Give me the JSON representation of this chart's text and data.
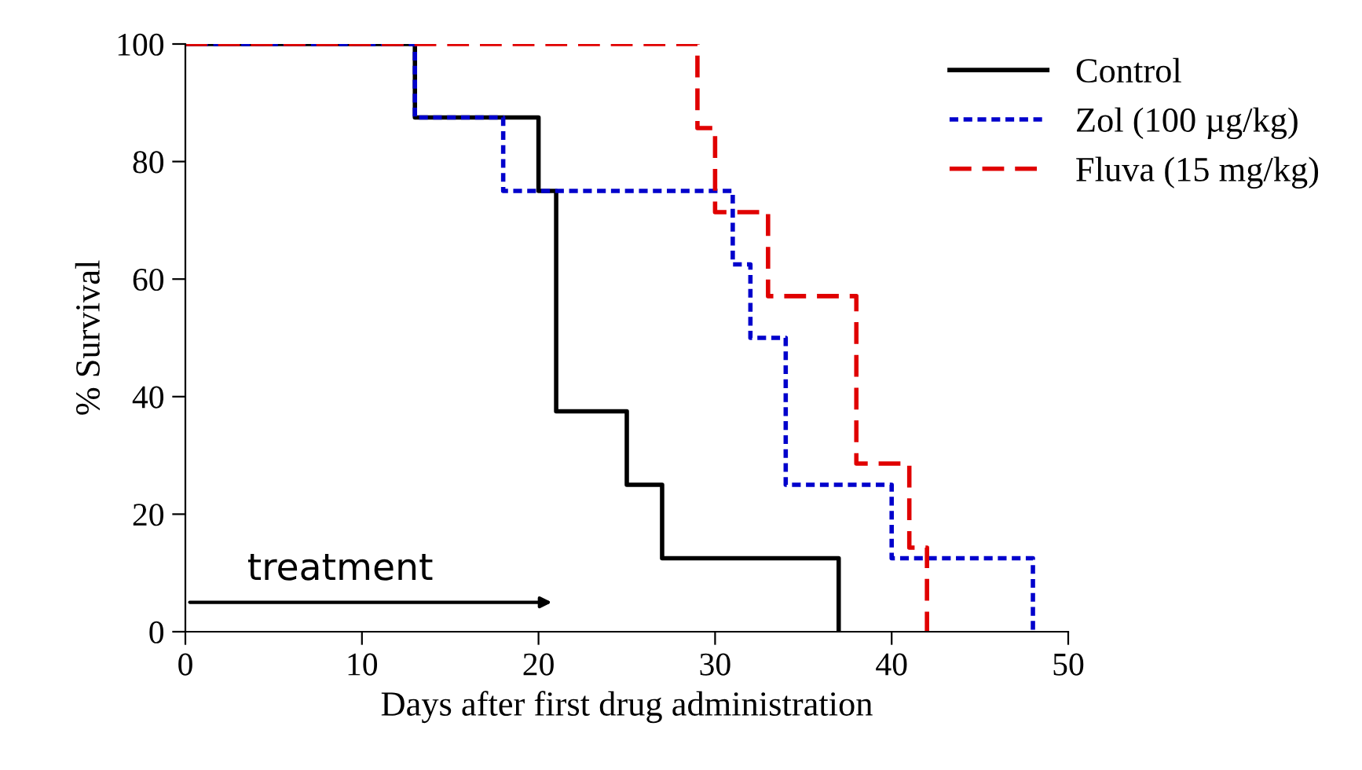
{
  "chart_data": {
    "type": "step",
    "xlabel": "Days after first drug administration",
    "ylabel": "% Survival",
    "xlim": [
      0,
      50
    ],
    "ylim": [
      0,
      100
    ],
    "xticks": [
      0,
      10,
      20,
      30,
      40,
      50
    ],
    "yticks": [
      0,
      20,
      40,
      60,
      80,
      100
    ],
    "grid": false,
    "legend": "top right",
    "marker": "none",
    "series": [
      {
        "name": "Control",
        "color": "#000000",
        "line_style": "solid",
        "x": [
          0,
          13,
          20,
          21,
          25,
          27,
          37
        ],
        "values": [
          100,
          87.5,
          75,
          37.5,
          25,
          12.5,
          0
        ]
      },
      {
        "name": "Zol (100 µg/kg)",
        "color": "#0000cc",
        "line_style": "dotted",
        "x": [
          0,
          13,
          18,
          31,
          32,
          34,
          40,
          48
        ],
        "values": [
          100,
          87.5,
          75,
          62.5,
          50,
          25,
          12.5,
          0
        ]
      },
      {
        "name": "Fluva (15 mg/kg)",
        "color": "#e00000",
        "line_style": "dashed",
        "x": [
          0,
          29,
          30,
          33,
          38,
          41,
          42
        ],
        "values": [
          100,
          85.7,
          71.4,
          57.1,
          28.6,
          14.3,
          0
        ]
      }
    ],
    "annotations": [
      "treatment"
    ]
  }
}
